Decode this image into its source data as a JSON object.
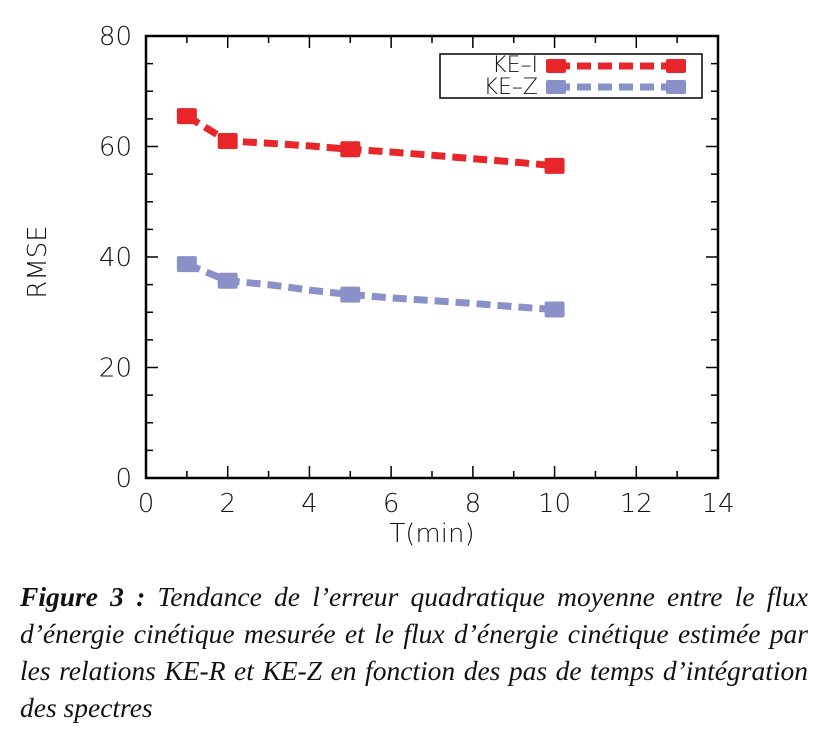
{
  "chart_data": {
    "type": "line",
    "xlabel": "T(min)",
    "ylabel": "RMSE",
    "xlim": [
      0,
      14
    ],
    "ylim": [
      0,
      80
    ],
    "xticks": [
      "0",
      "2",
      "4",
      "6",
      "8",
      "10",
      "12",
      "14"
    ],
    "yticks": [
      "0",
      "20",
      "40",
      "60",
      "80"
    ],
    "legend_position": "top-right",
    "series": [
      {
        "name": "KE–I",
        "color": "#e8262a",
        "x": [
          1,
          2,
          3,
          4,
          5,
          6,
          7,
          8,
          9,
          10
        ],
        "y": [
          65.5,
          61.0,
          60.6,
          60.1,
          59.5,
          59.0,
          58.4,
          57.8,
          57.2,
          56.5
        ]
      },
      {
        "name": "KE–Z",
        "color": "#8a90c8",
        "x": [
          1,
          2,
          3,
          4,
          5,
          6,
          7,
          8,
          9,
          10
        ],
        "y": [
          38.7,
          35.7,
          35.0,
          34.0,
          33.2,
          32.6,
          32.1,
          31.6,
          31.0,
          30.5
        ]
      }
    ]
  },
  "caption": {
    "lead": "Figure 3 :",
    "text": " Tendance de l’erreur quadratique moyenne entre le flux d’énergie cinétique mesurée et le flux d’énergie cinétique estimée par les relations KE-R et KE-Z en fonction des pas de temps d’intégration des spectres"
  }
}
